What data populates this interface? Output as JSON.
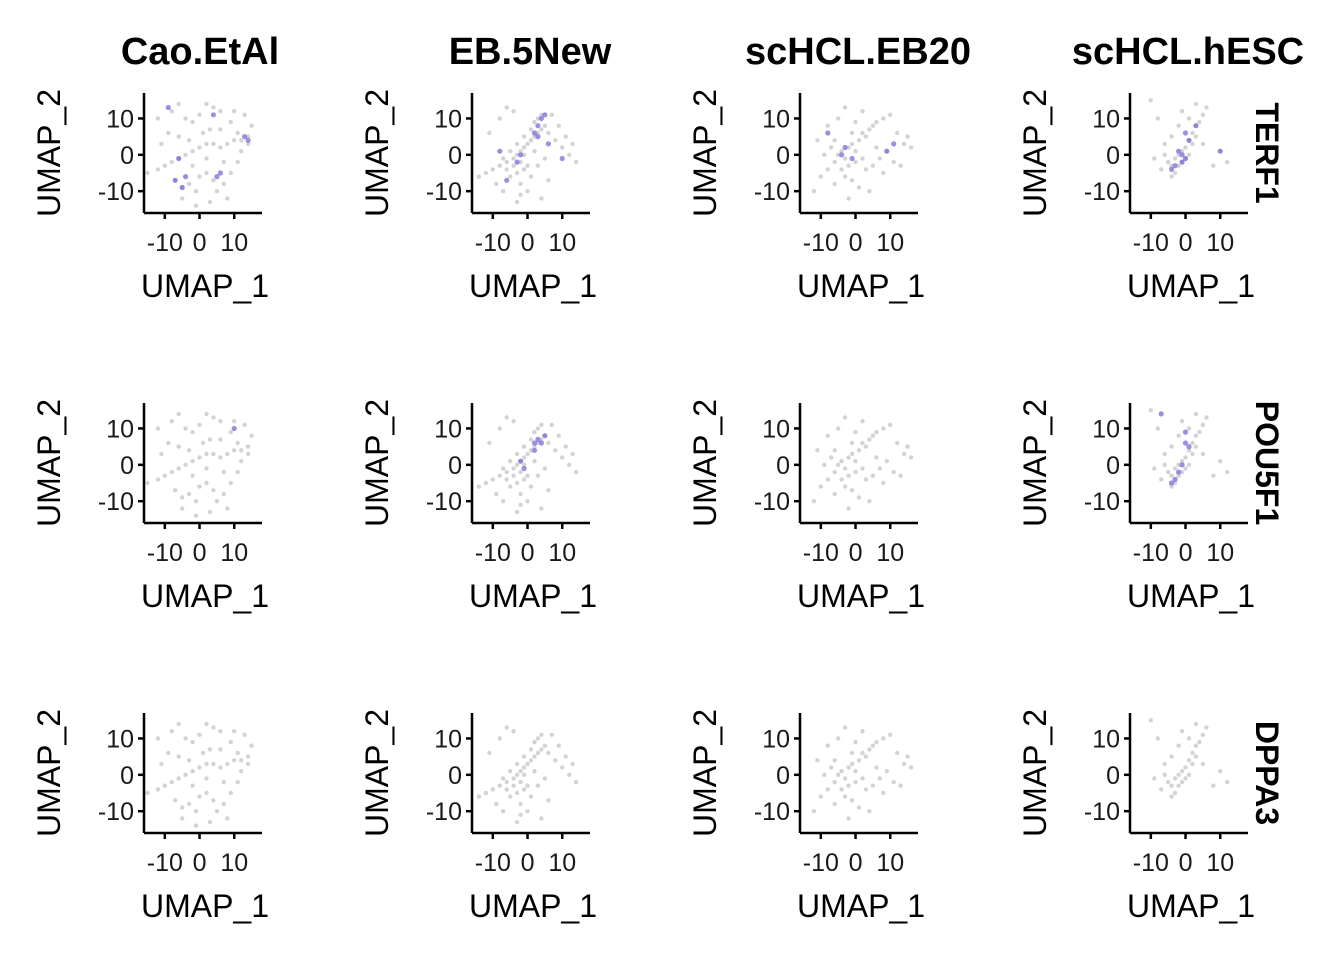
{
  "chart_data": {
    "type": "scatter",
    "layout": "facet-grid",
    "columns": [
      "Cao.EtAl",
      "EB.5New",
      "scHCL.EB20",
      "scHCL.hESC"
    ],
    "rows": [
      "TERF1",
      "POU5F1",
      "DPPA3"
    ],
    "xlabel": "UMAP_1",
    "ylabel": "UMAP_2",
    "xlim": [
      -16,
      18
    ],
    "ylim": [
      -16,
      17
    ],
    "x_ticks": [
      -10,
      0,
      10
    ],
    "x_tick_labels": [
      "-10",
      "0",
      "10"
    ],
    "y_ticks": [
      -10,
      0,
      10
    ],
    "y_tick_labels": [
      "-10",
      "0",
      "10"
    ],
    "colors": {
      "background_points": "#d3d3d3",
      "expressing_points": "#7b68d8"
    },
    "clouds": {
      "Cao.EtAl": [
        [
          -15,
          -5
        ],
        [
          -12,
          -4
        ],
        [
          -10,
          -3
        ],
        [
          -8,
          -2
        ],
        [
          -6,
          -1
        ],
        [
          -4,
          0
        ],
        [
          -2,
          1
        ],
        [
          0,
          2
        ],
        [
          2,
          3
        ],
        [
          4,
          3
        ],
        [
          6,
          2
        ],
        [
          8,
          3
        ],
        [
          10,
          4
        ],
        [
          12,
          4
        ],
        [
          14,
          3
        ],
        [
          -8,
          12
        ],
        [
          -6,
          14
        ],
        [
          -4,
          10
        ],
        [
          -2,
          9
        ],
        [
          0,
          11
        ],
        [
          2,
          14
        ],
        [
          4,
          13
        ],
        [
          6,
          12
        ],
        [
          -7,
          -7
        ],
        [
          -5,
          -9
        ],
        [
          -3,
          -8
        ],
        [
          -1,
          -10
        ],
        [
          0,
          -6
        ],
        [
          2,
          -5
        ],
        [
          4,
          -7
        ],
        [
          5,
          -10
        ],
        [
          7,
          -8
        ],
        [
          9,
          -5
        ],
        [
          11,
          -2
        ],
        [
          12,
          1
        ],
        [
          14,
          5
        ],
        [
          15,
          8
        ],
        [
          -3,
          4
        ],
        [
          1,
          6
        ],
        [
          3,
          7
        ],
        [
          -9,
          6
        ],
        [
          -11,
          3
        ],
        [
          -5,
          -12
        ],
        [
          -1,
          -14
        ],
        [
          3,
          -13
        ],
        [
          8,
          -12
        ],
        [
          10,
          12
        ],
        [
          13,
          11
        ],
        [
          -12,
          10
        ],
        [
          6,
          7
        ],
        [
          9,
          9
        ],
        [
          11,
          6
        ],
        [
          -2,
          -3
        ],
        [
          2,
          -1
        ],
        [
          -6,
          5
        ],
        [
          7,
          -2
        ]
      ],
      "EB.5New": [
        [
          -14,
          -6
        ],
        [
          -12,
          -5
        ],
        [
          -10,
          -4
        ],
        [
          -8,
          -3
        ],
        [
          -6,
          -2
        ],
        [
          -4,
          -1
        ],
        [
          -3,
          0
        ],
        [
          -2,
          1
        ],
        [
          -1,
          2
        ],
        [
          0,
          3
        ],
        [
          1,
          4
        ],
        [
          2,
          5
        ],
        [
          3,
          6
        ],
        [
          4,
          7
        ],
        [
          -5,
          -6
        ],
        [
          -3,
          -5
        ],
        [
          -1,
          -4
        ],
        [
          0,
          -3
        ],
        [
          -2,
          -2
        ],
        [
          -4,
          -3
        ],
        [
          -6,
          -4
        ],
        [
          -7,
          -1
        ],
        [
          -5,
          1
        ],
        [
          -3,
          3
        ],
        [
          -1,
          5
        ],
        [
          1,
          7
        ],
        [
          2,
          9
        ],
        [
          3,
          10
        ],
        [
          4,
          11
        ],
        [
          5,
          8
        ],
        [
          6,
          6
        ],
        [
          -8,
          10
        ],
        [
          -6,
          13
        ],
        [
          -4,
          12
        ],
        [
          8,
          4
        ],
        [
          10,
          2
        ],
        [
          12,
          0
        ],
        [
          14,
          -2
        ],
        [
          11,
          5
        ],
        [
          9,
          8
        ],
        [
          -9,
          -8
        ],
        [
          -7,
          -10
        ],
        [
          -2,
          -8
        ],
        [
          1,
          -6
        ],
        [
          3,
          -3
        ],
        [
          5,
          -1
        ],
        [
          -2,
          -11
        ],
        [
          4,
          -12
        ],
        [
          -11,
          6
        ],
        [
          13,
          3
        ],
        [
          6,
          -7
        ],
        [
          0,
          -10
        ],
        [
          -3,
          -13
        ],
        [
          7,
          11
        ],
        [
          2,
          1
        ],
        [
          -1,
          0
        ]
      ],
      "scHCL.EB20": [
        [
          -12,
          -10
        ],
        [
          -10,
          -6
        ],
        [
          -8,
          -4
        ],
        [
          -6,
          -2
        ],
        [
          -5,
          0
        ],
        [
          -4,
          1
        ],
        [
          -3,
          -1
        ],
        [
          -2,
          2
        ],
        [
          -1,
          3
        ],
        [
          0,
          1
        ],
        [
          1,
          4
        ],
        [
          2,
          6
        ],
        [
          3,
          5
        ],
        [
          4,
          7
        ],
        [
          5,
          8
        ],
        [
          6,
          9
        ],
        [
          8,
          10
        ],
        [
          10,
          11
        ],
        [
          12,
          6
        ],
        [
          14,
          3
        ],
        [
          15,
          5
        ],
        [
          16,
          2
        ],
        [
          -9,
          0
        ],
        [
          -7,
          2
        ],
        [
          -6,
          4
        ],
        [
          -4,
          -4
        ],
        [
          -2,
          -3
        ],
        [
          0,
          -2
        ],
        [
          2,
          -1
        ],
        [
          3,
          -4
        ],
        [
          -1,
          -7
        ],
        [
          1,
          -9
        ],
        [
          -3,
          -6
        ],
        [
          -6,
          -8
        ],
        [
          5,
          -3
        ],
        [
          7,
          -1
        ],
        [
          9,
          1
        ],
        [
          11,
          -2
        ],
        [
          -8,
          8
        ],
        [
          -5,
          10
        ],
        [
          -3,
          13
        ],
        [
          0,
          9
        ],
        [
          -2,
          -12
        ],
        [
          4,
          -10
        ],
        [
          13,
          -3
        ],
        [
          -11,
          4
        ],
        [
          2,
          12
        ],
        [
          6,
          2
        ],
        [
          8,
          -5
        ],
        [
          -1,
          6
        ]
      ],
      "scHCL.hESC": [
        [
          -10,
          15
        ],
        [
          -8,
          10
        ],
        [
          -6,
          0
        ],
        [
          -5,
          -2
        ],
        [
          -4,
          -3
        ],
        [
          -3,
          -1
        ],
        [
          -2,
          0
        ],
        [
          -1,
          1
        ],
        [
          0,
          2
        ],
        [
          1,
          4
        ],
        [
          2,
          6
        ],
        [
          3,
          8
        ],
        [
          -7,
          -4
        ],
        [
          -3,
          -5
        ],
        [
          -4,
          -6
        ],
        [
          -2,
          -3
        ],
        [
          -1,
          -2
        ],
        [
          0,
          -1
        ],
        [
          1,
          0
        ],
        [
          2,
          3
        ],
        [
          3,
          5
        ],
        [
          4,
          9
        ],
        [
          5,
          11
        ],
        [
          6,
          13
        ],
        [
          10,
          1
        ],
        [
          12,
          -2
        ],
        [
          8,
          -3
        ],
        [
          -9,
          -1
        ],
        [
          -1,
          12
        ],
        [
          1,
          10
        ],
        [
          3,
          14
        ],
        [
          -6,
          3
        ],
        [
          -4,
          5
        ],
        [
          5,
          3
        ],
        [
          -2,
          8
        ]
      ]
    },
    "expression": {
      "TERF1": {
        "Cao.EtAl": [
          [
            -9,
            13
          ],
          [
            -7,
            -7
          ],
          [
            -5,
            -9
          ],
          [
            5,
            -6
          ],
          [
            6,
            -5
          ],
          [
            4,
            11
          ],
          [
            13,
            5
          ],
          [
            14,
            4
          ],
          [
            -6,
            -1
          ],
          [
            -4,
            -6
          ]
        ],
        "EB.5New": [
          [
            2,
            6
          ],
          [
            3,
            5
          ],
          [
            3,
            8
          ],
          [
            4,
            10
          ],
          [
            -6,
            -7
          ],
          [
            -8,
            1
          ],
          [
            6,
            3
          ],
          [
            10,
            -1
          ],
          [
            5,
            11
          ],
          [
            -2,
            0
          ],
          [
            -3,
            -2
          ]
        ],
        "scHCL.EB20": [
          [
            -8,
            6
          ],
          [
            -3,
            2
          ],
          [
            -4,
            0
          ],
          [
            9,
            1
          ],
          [
            11,
            3
          ],
          [
            -1,
            -1
          ]
        ],
        "scHCL.hESC": [
          [
            0,
            6
          ],
          [
            1,
            4
          ],
          [
            -2,
            1
          ],
          [
            -1,
            0
          ],
          [
            0,
            -1
          ],
          [
            -3,
            -3
          ],
          [
            -4,
            -4
          ],
          [
            -1,
            -2
          ],
          [
            10,
            1
          ],
          [
            3,
            8
          ]
        ]
      },
      "POU5F1": {
        "Cao.EtAl": [
          [
            10,
            10
          ]
        ],
        "EB.5New": [
          [
            2,
            6
          ],
          [
            3,
            7
          ],
          [
            4,
            6
          ],
          [
            5,
            8
          ],
          [
            2,
            4
          ],
          [
            -2,
            1
          ],
          [
            -1,
            -1
          ]
        ],
        "scHCL.EB20": [],
        "scHCL.hESC": [
          [
            -7,
            14
          ],
          [
            0,
            9
          ],
          [
            0,
            6
          ],
          [
            1,
            5
          ],
          [
            -2,
            -2
          ],
          [
            -3,
            -4
          ],
          [
            -4,
            -5
          ],
          [
            -1,
            0
          ]
        ]
      },
      "DPPA3": {
        "Cao.EtAl": [],
        "EB.5New": [],
        "scHCL.EB20": [],
        "scHCL.hESC": []
      }
    }
  }
}
